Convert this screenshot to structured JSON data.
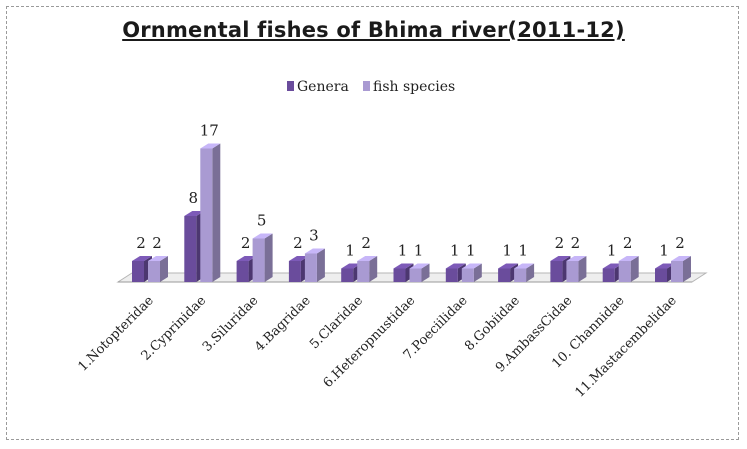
{
  "chart_data": {
    "type": "bar",
    "title": "Ornmental fishes of Bhima river(2011-12)",
    "categories": [
      "1.Notopteridae",
      "2.Cyprinidae",
      "3.Siluridae",
      "4.Bagridae",
      "5.Claridae",
      "6.Heteropnustidae",
      "7.Poeciilidae",
      "8.Gobiidae",
      "9.AmbassCidae",
      "10. Channidae",
      "11.Mastacembelidae"
    ],
    "series": [
      {
        "name": "Genera",
        "values": [
          2,
          8,
          2,
          2,
          1,
          1,
          1,
          1,
          2,
          1,
          1
        ],
        "color": "#6a4c9c"
      },
      {
        "name": "fish species",
        "values": [
          2,
          17,
          5,
          3,
          2,
          1,
          1,
          1,
          2,
          2,
          2
        ],
        "color": "#a99ad2"
      }
    ],
    "legend_position": "top-center",
    "three_d": true,
    "grid": false
  }
}
